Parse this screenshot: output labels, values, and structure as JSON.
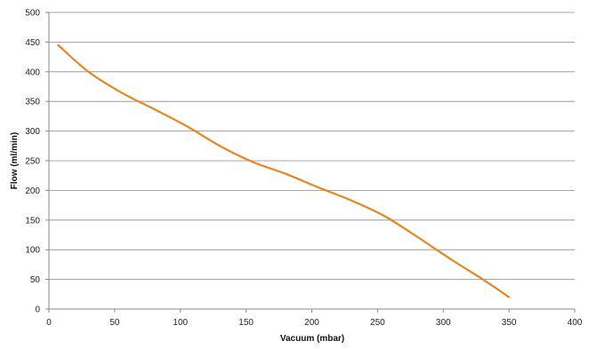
{
  "chart_data": {
    "type": "line",
    "title": "",
    "xlabel": "Vacuum (mbar)",
    "ylabel": "Flow (ml/min)",
    "xlim": [
      0,
      400
    ],
    "ylim": [
      0,
      500
    ],
    "x_ticks": [
      "0",
      "50",
      "100",
      "150",
      "200",
      "250",
      "300",
      "350",
      "400"
    ],
    "y_ticks": [
      "0",
      "50",
      "100",
      "150",
      "200",
      "250",
      "300",
      "350",
      "400",
      "450",
      "500"
    ],
    "grid": "horizontal",
    "legend": "none",
    "series": [
      {
        "color": "#E8851F",
        "x": [
          7,
          30,
          55,
          80,
          105,
          130,
          155,
          180,
          205,
          230,
          255,
          280,
          305,
          330,
          350
        ],
        "y": [
          445,
          400,
          365,
          337,
          308,
          275,
          248,
          228,
          205,
          183,
          157,
          122,
          85,
          50,
          20
        ]
      }
    ]
  }
}
